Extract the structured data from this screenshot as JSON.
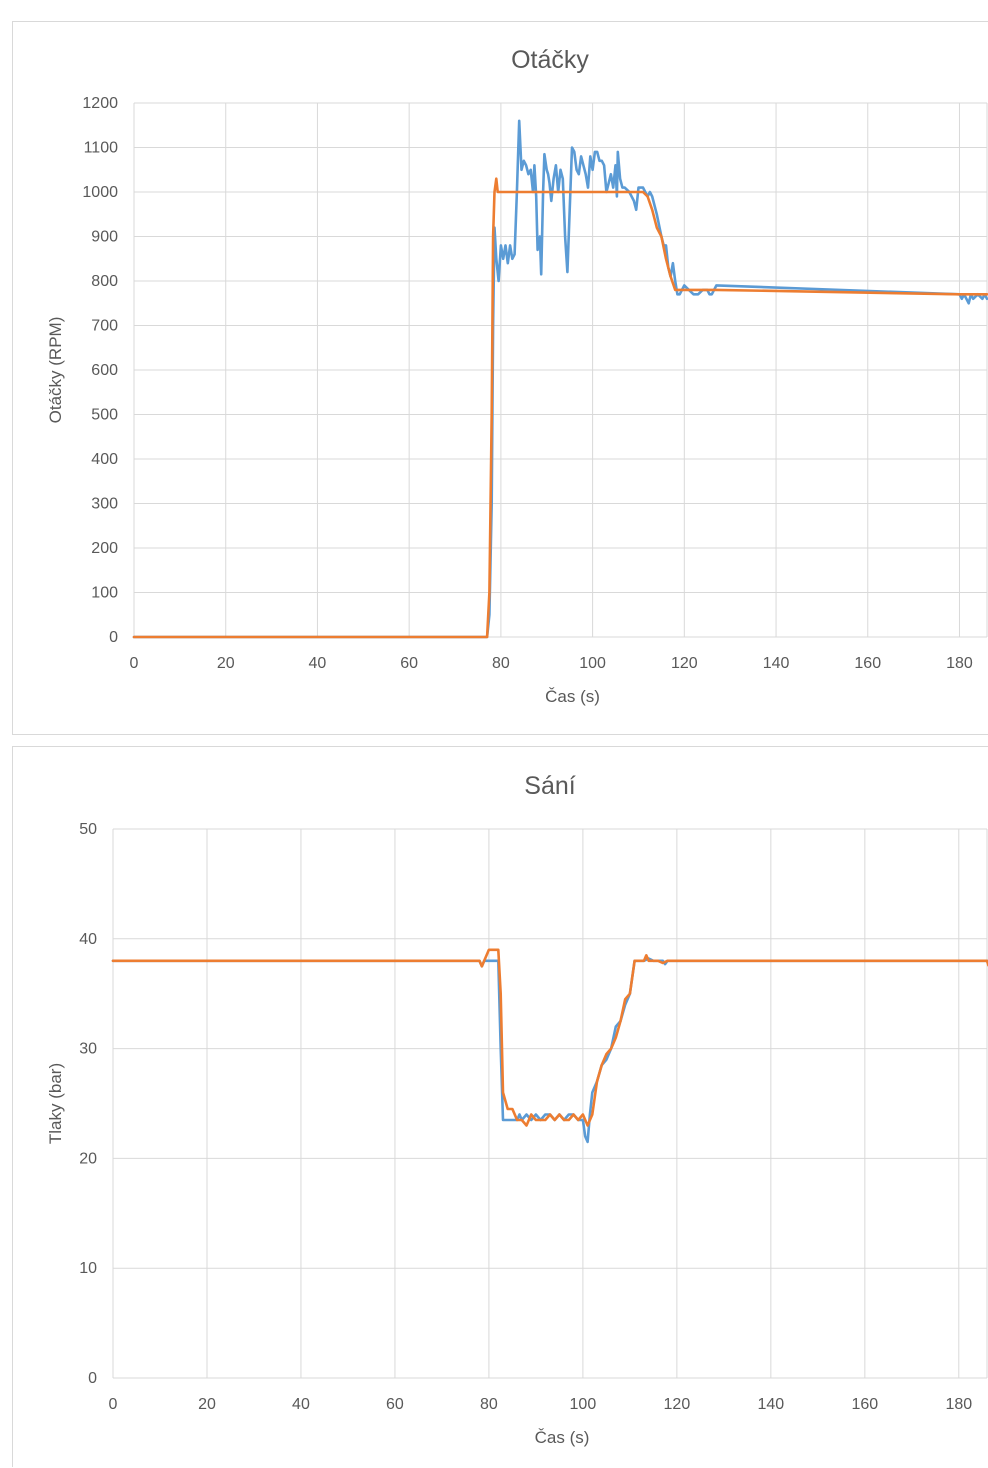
{
  "chart_data": [
    {
      "type": "line",
      "title": "Otáčky",
      "xlabel": "Čas (s)",
      "ylabel": "Otáčky (RPM)",
      "xlim": [
        0,
        186
      ],
      "ylim": [
        0,
        1200
      ],
      "x_ticks": [
        0,
        20,
        40,
        60,
        80,
        100,
        120,
        140,
        160,
        180
      ],
      "y_ticks": [
        0,
        100,
        200,
        300,
        400,
        500,
        600,
        700,
        800,
        900,
        1000,
        1100,
        1200
      ],
      "grid": true,
      "series": [
        {
          "color": "#5b9bd5",
          "points": [
            [
              0,
              0
            ],
            [
              77,
              0
            ],
            [
              77.5,
              50
            ],
            [
              78,
              300
            ],
            [
              78.3,
              700
            ],
            [
              78.6,
              920
            ],
            [
              79,
              850
            ],
            [
              79.5,
              800
            ],
            [
              80,
              880
            ],
            [
              80.5,
              850
            ],
            [
              81,
              880
            ],
            [
              81.5,
              840
            ],
            [
              82,
              880
            ],
            [
              82.5,
              850
            ],
            [
              83,
              860
            ],
            [
              83.5,
              1000
            ],
            [
              84,
              1160
            ],
            [
              84.5,
              1050
            ],
            [
              85,
              1070
            ],
            [
              85.5,
              1060
            ],
            [
              86,
              1040
            ],
            [
              86.5,
              1050
            ],
            [
              87,
              1000
            ],
            [
              87.3,
              1060
            ],
            [
              87.7,
              990
            ],
            [
              88,
              870
            ],
            [
              88.5,
              900
            ],
            [
              88.8,
              815
            ],
            [
              89.2,
              1000
            ],
            [
              89.5,
              1085
            ],
            [
              90,
              1050
            ],
            [
              90.3,
              1040
            ],
            [
              90.6,
              1020
            ],
            [
              91,
              980
            ],
            [
              91.5,
              1030
            ],
            [
              92,
              1060
            ],
            [
              92.5,
              1000
            ],
            [
              93,
              1050
            ],
            [
              93.5,
              1030
            ],
            [
              94,
              900
            ],
            [
              94.5,
              820
            ],
            [
              95,
              960
            ],
            [
              95.5,
              1100
            ],
            [
              96,
              1090
            ],
            [
              96.5,
              1050
            ],
            [
              97,
              1040
            ],
            [
              97.5,
              1080
            ],
            [
              98,
              1060
            ],
            [
              98.5,
              1040
            ],
            [
              99,
              1010
            ],
            [
              99.5,
              1080
            ],
            [
              100,
              1050
            ],
            [
              100.5,
              1090
            ],
            [
              101,
              1090
            ],
            [
              101.5,
              1070
            ],
            [
              102,
              1070
            ],
            [
              102.5,
              1060
            ],
            [
              103,
              1000
            ],
            [
              103.5,
              1020
            ],
            [
              104,
              1040
            ],
            [
              104.5,
              1010
            ],
            [
              105,
              1060
            ],
            [
              105.3,
              990
            ],
            [
              105.5,
              1090
            ],
            [
              106,
              1030
            ],
            [
              106.5,
              1010
            ],
            [
              107,
              1010
            ],
            [
              108,
              1000
            ],
            [
              109,
              980
            ],
            [
              109.5,
              960
            ],
            [
              110,
              1010
            ],
            [
              111,
              1010
            ],
            [
              112,
              990
            ],
            [
              112.5,
              1000
            ],
            [
              113,
              990
            ],
            [
              114,
              950
            ],
            [
              115,
              900
            ],
            [
              115.5,
              880
            ],
            [
              116,
              880
            ],
            [
              116.5,
              830
            ],
            [
              117,
              810
            ],
            [
              117.5,
              840
            ],
            [
              118,
              800
            ],
            [
              118.5,
              770
            ],
            [
              119,
              770
            ],
            [
              120,
              790
            ],
            [
              121,
              780
            ],
            [
              122,
              770
            ],
            [
              123,
              770
            ],
            [
              124,
              780
            ],
            [
              125,
              780
            ],
            [
              125.5,
              770
            ],
            [
              126,
              770
            ],
            [
              127,
              790
            ],
            [
              180,
              770
            ],
            [
              180.5,
              760
            ],
            [
              181,
              770
            ],
            [
              181.5,
              760
            ],
            [
              182,
              750
            ],
            [
              182.5,
              770
            ],
            [
              183,
              760
            ],
            [
              184,
              770
            ],
            [
              185,
              760
            ],
            [
              185.5,
              770
            ],
            [
              186,
              760
            ]
          ]
        },
        {
          "color": "#ed7d31",
          "points": [
            [
              0,
              0
            ],
            [
              77,
              0
            ],
            [
              77.5,
              100
            ],
            [
              78,
              500
            ],
            [
              78.3,
              900
            ],
            [
              78.6,
              1000
            ],
            [
              79,
              1030
            ],
            [
              79.3,
              1000
            ],
            [
              80,
              1000
            ],
            [
              111,
              1000
            ],
            [
              112,
              990
            ],
            [
              113,
              960
            ],
            [
              114,
              920
            ],
            [
              115,
              900
            ],
            [
              116,
              850
            ],
            [
              117,
              810
            ],
            [
              118,
              780
            ],
            [
              119,
              780
            ],
            [
              122,
              780
            ],
            [
              125,
              780
            ],
            [
              127,
              780
            ],
            [
              180,
              770
            ],
            [
              186,
              770
            ]
          ]
        }
      ]
    },
    {
      "type": "line",
      "title": "Sání",
      "xlabel": "Čas (s)",
      "ylabel": "Tlaky (bar)",
      "xlim": [
        0,
        186
      ],
      "ylim": [
        0,
        50
      ],
      "x_ticks": [
        0,
        20,
        40,
        60,
        80,
        100,
        120,
        140,
        160,
        180
      ],
      "y_ticks": [
        0,
        10,
        20,
        30,
        40,
        50
      ],
      "grid": true,
      "series": [
        {
          "color": "#5b9bd5",
          "points": [
            [
              0,
              38
            ],
            [
              78,
              38
            ],
            [
              78.5,
              37.5
            ],
            [
              79,
              38
            ],
            [
              80,
              38
            ],
            [
              81,
              38
            ],
            [
              82,
              38
            ],
            [
              82.5,
              30
            ],
            [
              83,
              23.5
            ],
            [
              85,
              23.5
            ],
            [
              86,
              23.5
            ],
            [
              86.5,
              24
            ],
            [
              87,
              23.5
            ],
            [
              88,
              24
            ],
            [
              89,
              23.5
            ],
            [
              90,
              24
            ],
            [
              91,
              23.5
            ],
            [
              92,
              24
            ],
            [
              93,
              24
            ],
            [
              94,
              23.5
            ],
            [
              95,
              24
            ],
            [
              96,
              23.5
            ],
            [
              97,
              24
            ],
            [
              98,
              24
            ],
            [
              99,
              23.5
            ],
            [
              100,
              23.5
            ],
            [
              100.5,
              22
            ],
            [
              101,
              21.5
            ],
            [
              101.5,
              24
            ],
            [
              102,
              26
            ],
            [
              103,
              27
            ],
            [
              104,
              28.5
            ],
            [
              105,
              29
            ],
            [
              106,
              30
            ],
            [
              107,
              32
            ],
            [
              108,
              32.5
            ],
            [
              109,
              34
            ],
            [
              110,
              35
            ],
            [
              111,
              38
            ],
            [
              113,
              38
            ],
            [
              114,
              38.2
            ],
            [
              115,
              38
            ],
            [
              117,
              38
            ],
            [
              117.5,
              37.7
            ],
            [
              118,
              38
            ],
            [
              119,
              38
            ],
            [
              186,
              38
            ]
          ]
        },
        {
          "color": "#ed7d31",
          "points": [
            [
              0,
              38
            ],
            [
              78,
              38
            ],
            [
              78.5,
              37.5
            ],
            [
              79,
              38
            ],
            [
              80,
              39
            ],
            [
              82,
              39
            ],
            [
              82.5,
              35
            ],
            [
              83,
              26
            ],
            [
              84,
              24.5
            ],
            [
              85,
              24.5
            ],
            [
              86,
              23.5
            ],
            [
              87,
              23.5
            ],
            [
              88,
              23
            ],
            [
              89,
              24
            ],
            [
              90,
              23.5
            ],
            [
              91,
              23.5
            ],
            [
              92,
              23.5
            ],
            [
              93,
              24
            ],
            [
              94,
              23.5
            ],
            [
              95,
              24
            ],
            [
              96,
              23.5
            ],
            [
              97,
              23.5
            ],
            [
              98,
              24
            ],
            [
              99,
              23.5
            ],
            [
              100,
              24
            ],
            [
              101,
              23
            ],
            [
              102,
              24
            ],
            [
              103,
              27
            ],
            [
              104,
              28.5
            ],
            [
              105,
              29.5
            ],
            [
              106,
              30
            ],
            [
              107,
              31
            ],
            [
              108,
              32.5
            ],
            [
              109,
              34.5
            ],
            [
              110,
              35
            ],
            [
              111,
              38
            ],
            [
              112,
              38
            ],
            [
              113,
              38
            ],
            [
              113.5,
              38.5
            ],
            [
              114,
              38
            ],
            [
              116,
              38
            ],
            [
              117,
              37.8
            ],
            [
              118,
              38
            ],
            [
              186,
              38
            ],
            [
              186.3,
              37.6
            ]
          ]
        }
      ]
    }
  ]
}
